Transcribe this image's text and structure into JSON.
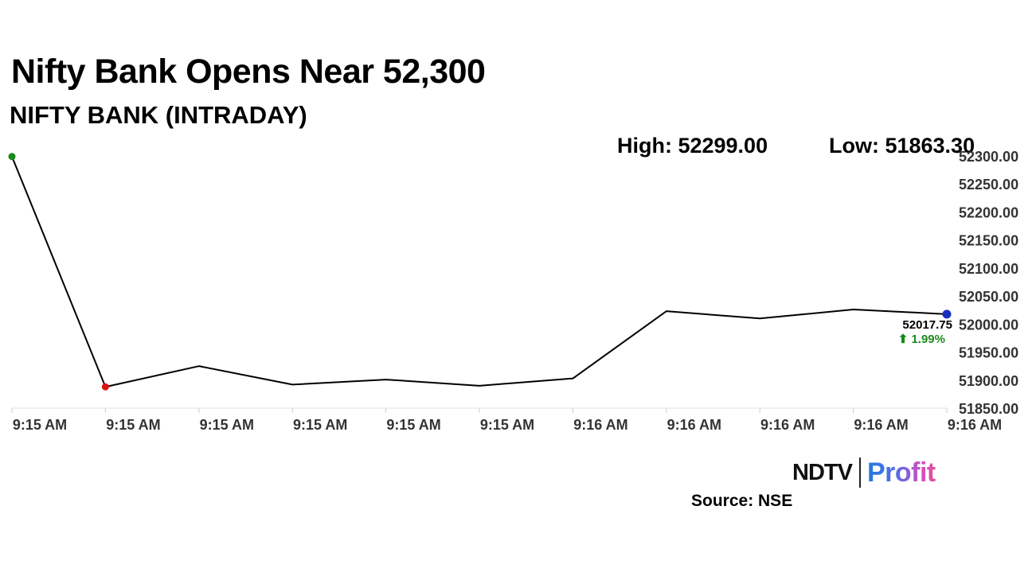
{
  "header": {
    "title": "Nifty Bank Opens Near 52,300",
    "subtitle": "NIFTY BANK (INTRADAY)"
  },
  "stats": {
    "high": "High: 52299.00",
    "low": "Low: 51863.30"
  },
  "chart_data": {
    "type": "line",
    "x": [
      "9:15 AM",
      "9:15 AM",
      "9:15 AM",
      "9:15 AM",
      "9:15 AM",
      "9:15 AM",
      "9:16 AM",
      "9:16 AM",
      "9:16 AM",
      "9:16 AM",
      "9:16 AM"
    ],
    "values": [
      52299.0,
      51888.0,
      51925.0,
      51892.0,
      51901.0,
      51890.0,
      51903.0,
      52023.0,
      52010.0,
      52026.0,
      52017.75
    ],
    "ylim": [
      51850,
      52300
    ],
    "yticks": [
      "52300.00",
      "52250.00",
      "52200.00",
      "52150.00",
      "52100.00",
      "52050.00",
      "52000.00",
      "51950.00",
      "51900.00",
      "51850.00"
    ],
    "ytick_values": [
      52300,
      52250,
      52200,
      52150,
      52100,
      52050,
      52000,
      51950,
      51900,
      51850
    ],
    "last_value_label": "52017.75",
    "change_label": "⬆ 1.99%",
    "grid": false,
    "colors": {
      "line": "#000000",
      "high_marker": "#1a8a1a",
      "low_marker": "#e01010",
      "last_marker": "#1a2ec0",
      "change": "#1a8a1a"
    }
  },
  "footer": {
    "source": "Source: NSE",
    "logo_left": "NDTV",
    "logo_right": "Profit"
  }
}
